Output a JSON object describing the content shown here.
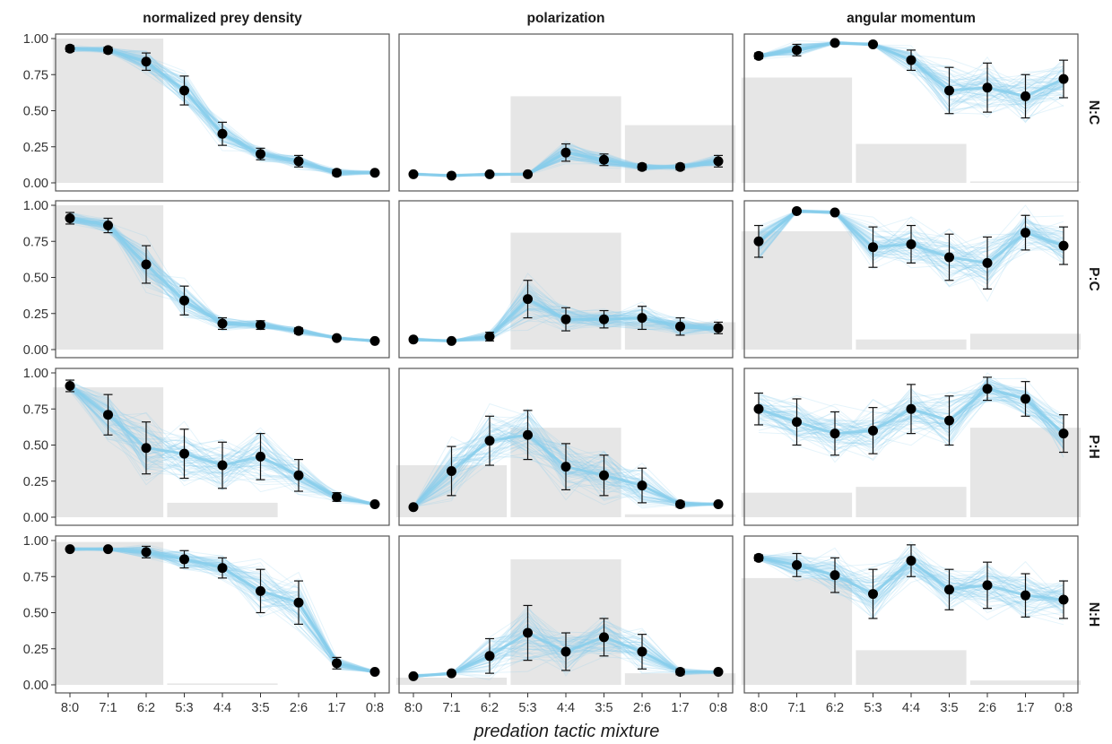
{
  "chart_data": {
    "type": "line",
    "layout": "facet-grid 4 rows x 3 columns",
    "x_title": "predation tactic mixture",
    "categories": [
      "8:0",
      "7:1",
      "6:2",
      "5:3",
      "4:4",
      "3:5",
      "2:6",
      "1:7",
      "0:8"
    ],
    "y_ticks": [
      "0.00",
      "0.25",
      "0.50",
      "0.75",
      "1.00"
    ],
    "ylim": [
      0,
      1.05
    ],
    "grid": false,
    "columns": [
      "normalized prey density",
      "polarization",
      "angular momentum"
    ],
    "rows": [
      "N:C",
      "P:C",
      "P:H",
      "N:H"
    ],
    "colors": {
      "ensemble": "#87ceeb",
      "point": "#000000",
      "bar": "#e6e6e6",
      "frame": "#555555"
    },
    "panels": [
      {
        "row": "N:C",
        "column": "normalized prey density",
        "means": [
          0.93,
          0.92,
          0.84,
          0.64,
          0.34,
          0.2,
          0.15,
          0.07,
          0.07
        ],
        "err": [
          0.02,
          0.02,
          0.06,
          0.1,
          0.08,
          0.04,
          0.04,
          0.02,
          0.01
        ],
        "bars": [
          {
            "from": "8:0",
            "to": "6:2",
            "value": 1.0
          }
        ]
      },
      {
        "row": "N:C",
        "column": "polarization",
        "means": [
          0.06,
          0.05,
          0.06,
          0.06,
          0.21,
          0.16,
          0.11,
          0.11,
          0.15
        ],
        "err": [
          0.01,
          0.01,
          0.01,
          0.01,
          0.06,
          0.04,
          0.02,
          0.02,
          0.04
        ],
        "bars": [
          {
            "from": "5:3",
            "to": "3:5",
            "value": 0.6
          },
          {
            "from": "2:6",
            "to": "0:8",
            "value": 0.4
          }
        ]
      },
      {
        "row": "N:C",
        "column": "angular momentum",
        "means": [
          0.88,
          0.92,
          0.97,
          0.96,
          0.85,
          0.64,
          0.66,
          0.6,
          0.72
        ],
        "err": [
          0.02,
          0.04,
          0.01,
          0.01,
          0.07,
          0.16,
          0.17,
          0.15,
          0.13
        ],
        "bars": [
          {
            "from": "8:0",
            "to": "6:2",
            "value": 0.73
          },
          {
            "from": "5:3",
            "to": "3:5",
            "value": 0.27
          },
          {
            "from": "2:6",
            "to": "0:8",
            "value": 0.01
          }
        ]
      },
      {
        "row": "P:C",
        "column": "normalized prey density",
        "means": [
          0.91,
          0.86,
          0.59,
          0.34,
          0.18,
          0.17,
          0.13,
          0.08,
          0.06
        ],
        "err": [
          0.04,
          0.05,
          0.13,
          0.1,
          0.04,
          0.03,
          0.02,
          0.01,
          0.01
        ],
        "bars": [
          {
            "from": "8:0",
            "to": "6:2",
            "value": 1.0
          }
        ]
      },
      {
        "row": "P:C",
        "column": "polarization",
        "means": [
          0.07,
          0.06,
          0.09,
          0.35,
          0.21,
          0.21,
          0.22,
          0.16,
          0.15
        ],
        "err": [
          0.01,
          0.01,
          0.03,
          0.13,
          0.08,
          0.06,
          0.08,
          0.06,
          0.04
        ],
        "bars": [
          {
            "from": "5:3",
            "to": "3:5",
            "value": 0.81
          },
          {
            "from": "2:6",
            "to": "0:8",
            "value": 0.19
          }
        ]
      },
      {
        "row": "P:C",
        "column": "angular momentum",
        "means": [
          0.75,
          0.96,
          0.95,
          0.71,
          0.73,
          0.64,
          0.6,
          0.81,
          0.72
        ],
        "err": [
          0.11,
          0.01,
          0.01,
          0.14,
          0.13,
          0.16,
          0.18,
          0.12,
          0.13
        ],
        "bars": [
          {
            "from": "8:0",
            "to": "6:2",
            "value": 0.82
          },
          {
            "from": "5:3",
            "to": "3:5",
            "value": 0.07
          },
          {
            "from": "2:6",
            "to": "0:8",
            "value": 0.11
          }
        ]
      },
      {
        "row": "P:H",
        "column": "normalized prey density",
        "means": [
          0.91,
          0.71,
          0.48,
          0.44,
          0.36,
          0.42,
          0.29,
          0.14,
          0.09
        ],
        "err": [
          0.04,
          0.14,
          0.18,
          0.17,
          0.16,
          0.16,
          0.11,
          0.03,
          0.01
        ],
        "bars": [
          {
            "from": "8:0",
            "to": "6:2",
            "value": 0.9
          },
          {
            "from": "5:3",
            "to": "3:5",
            "value": 0.1
          }
        ]
      },
      {
        "row": "P:H",
        "column": "polarization",
        "means": [
          0.07,
          0.32,
          0.53,
          0.57,
          0.35,
          0.29,
          0.22,
          0.09,
          0.09
        ],
        "err": [
          0.01,
          0.17,
          0.17,
          0.17,
          0.16,
          0.14,
          0.12,
          0.02,
          0.01
        ],
        "bars": [
          {
            "from": "8:0",
            "to": "6:2",
            "value": 0.36
          },
          {
            "from": "5:3",
            "to": "3:5",
            "value": 0.62
          },
          {
            "from": "2:6",
            "to": "0:8",
            "value": 0.02
          }
        ]
      },
      {
        "row": "P:H",
        "column": "angular momentum",
        "means": [
          0.75,
          0.66,
          0.58,
          0.6,
          0.75,
          0.67,
          0.89,
          0.82,
          0.58
        ],
        "err": [
          0.11,
          0.16,
          0.15,
          0.16,
          0.17,
          0.17,
          0.08,
          0.12,
          0.13
        ],
        "bars": [
          {
            "from": "8:0",
            "to": "6:2",
            "value": 0.17
          },
          {
            "from": "5:3",
            "to": "3:5",
            "value": 0.21
          },
          {
            "from": "2:6",
            "to": "0:8",
            "value": 0.62
          }
        ]
      },
      {
        "row": "N:H",
        "column": "normalized prey density",
        "means": [
          0.94,
          0.94,
          0.92,
          0.87,
          0.81,
          0.65,
          0.57,
          0.15,
          0.09
        ],
        "err": [
          0.01,
          0.01,
          0.04,
          0.06,
          0.07,
          0.15,
          0.15,
          0.04,
          0.01
        ],
        "bars": [
          {
            "from": "8:0",
            "to": "6:2",
            "value": 0.99
          },
          {
            "from": "5:3",
            "to": "3:5",
            "value": 0.01
          }
        ]
      },
      {
        "row": "N:H",
        "column": "polarization",
        "means": [
          0.06,
          0.08,
          0.2,
          0.36,
          0.23,
          0.33,
          0.23,
          0.09,
          0.09
        ],
        "err": [
          0.01,
          0.01,
          0.12,
          0.19,
          0.13,
          0.13,
          0.12,
          0.02,
          0.01
        ],
        "bars": [
          {
            "from": "8:0",
            "to": "6:2",
            "value": 0.05
          },
          {
            "from": "5:3",
            "to": "3:5",
            "value": 0.87
          },
          {
            "from": "2:6",
            "to": "0:8",
            "value": 0.08
          }
        ]
      },
      {
        "row": "N:H",
        "column": "angular momentum",
        "means": [
          0.88,
          0.83,
          0.76,
          0.63,
          0.86,
          0.66,
          0.69,
          0.62,
          0.59
        ],
        "err": [
          0.02,
          0.08,
          0.12,
          0.17,
          0.11,
          0.14,
          0.16,
          0.15,
          0.13
        ],
        "bars": [
          {
            "from": "8:0",
            "to": "6:2",
            "value": 0.74
          },
          {
            "from": "5:3",
            "to": "3:5",
            "value": 0.24
          },
          {
            "from": "2:6",
            "to": "0:8",
            "value": 0.03
          }
        ]
      }
    ]
  }
}
